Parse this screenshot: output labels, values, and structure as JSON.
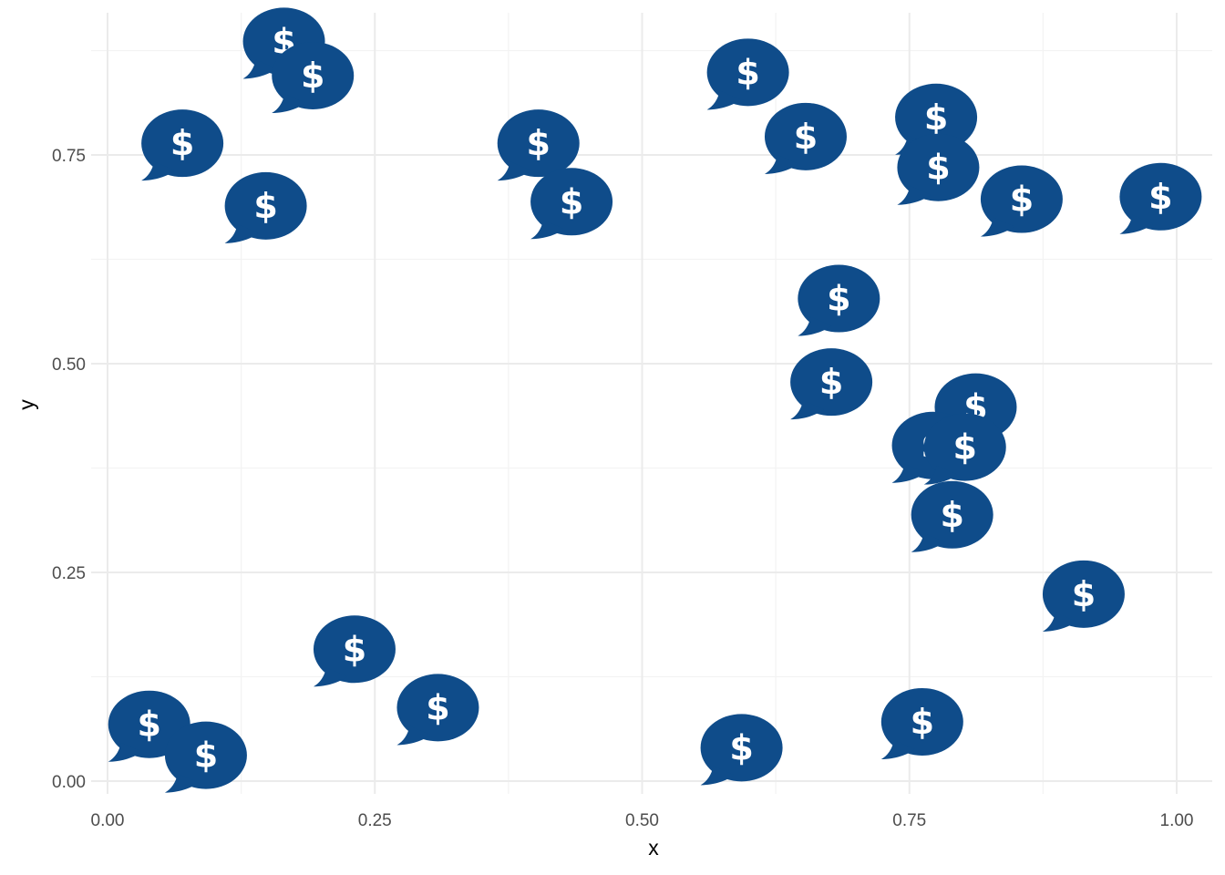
{
  "chart_data": {
    "type": "scatter",
    "marker": "comment-dollar-icon",
    "marker_color": "#0f4c8a",
    "marker_glyph": "$",
    "xlabel": "x",
    "ylabel": "y",
    "xlim": [
      0,
      1
    ],
    "ylim": [
      0,
      0.9
    ],
    "x_ticks": [
      0,
      0.25,
      0.5,
      0.75,
      1.0
    ],
    "x_tick_labels": [
      "0.00",
      "0.25",
      "0.50",
      "0.75",
      "1.00"
    ],
    "y_ticks": [
      0,
      0.25,
      0.5,
      0.75
    ],
    "y_tick_labels": [
      "0.00",
      "0.25",
      "0.50",
      "0.75"
    ],
    "grid": true,
    "background": "#ffffff",
    "points": [
      {
        "x": 0.165,
        "y": 0.886
      },
      {
        "x": 0.192,
        "y": 0.845
      },
      {
        "x": 0.07,
        "y": 0.764
      },
      {
        "x": 0.148,
        "y": 0.689
      },
      {
        "x": 0.403,
        "y": 0.764
      },
      {
        "x": 0.434,
        "y": 0.694
      },
      {
        "x": 0.599,
        "y": 0.849
      },
      {
        "x": 0.653,
        "y": 0.772
      },
      {
        "x": 0.775,
        "y": 0.795
      },
      {
        "x": 0.777,
        "y": 0.735
      },
      {
        "x": 0.855,
        "y": 0.697
      },
      {
        "x": 0.985,
        "y": 0.7
      },
      {
        "x": 0.684,
        "y": 0.578
      },
      {
        "x": 0.677,
        "y": 0.478
      },
      {
        "x": 0.812,
        "y": 0.448
      },
      {
        "x": 0.772,
        "y": 0.402
      },
      {
        "x": 0.802,
        "y": 0.4
      },
      {
        "x": 0.79,
        "y": 0.319
      },
      {
        "x": 0.913,
        "y": 0.224
      },
      {
        "x": 0.231,
        "y": 0.158
      },
      {
        "x": 0.309,
        "y": 0.088
      },
      {
        "x": 0.039,
        "y": 0.068
      },
      {
        "x": 0.092,
        "y": 0.031
      },
      {
        "x": 0.593,
        "y": 0.04
      },
      {
        "x": 0.762,
        "y": 0.071
      }
    ]
  }
}
